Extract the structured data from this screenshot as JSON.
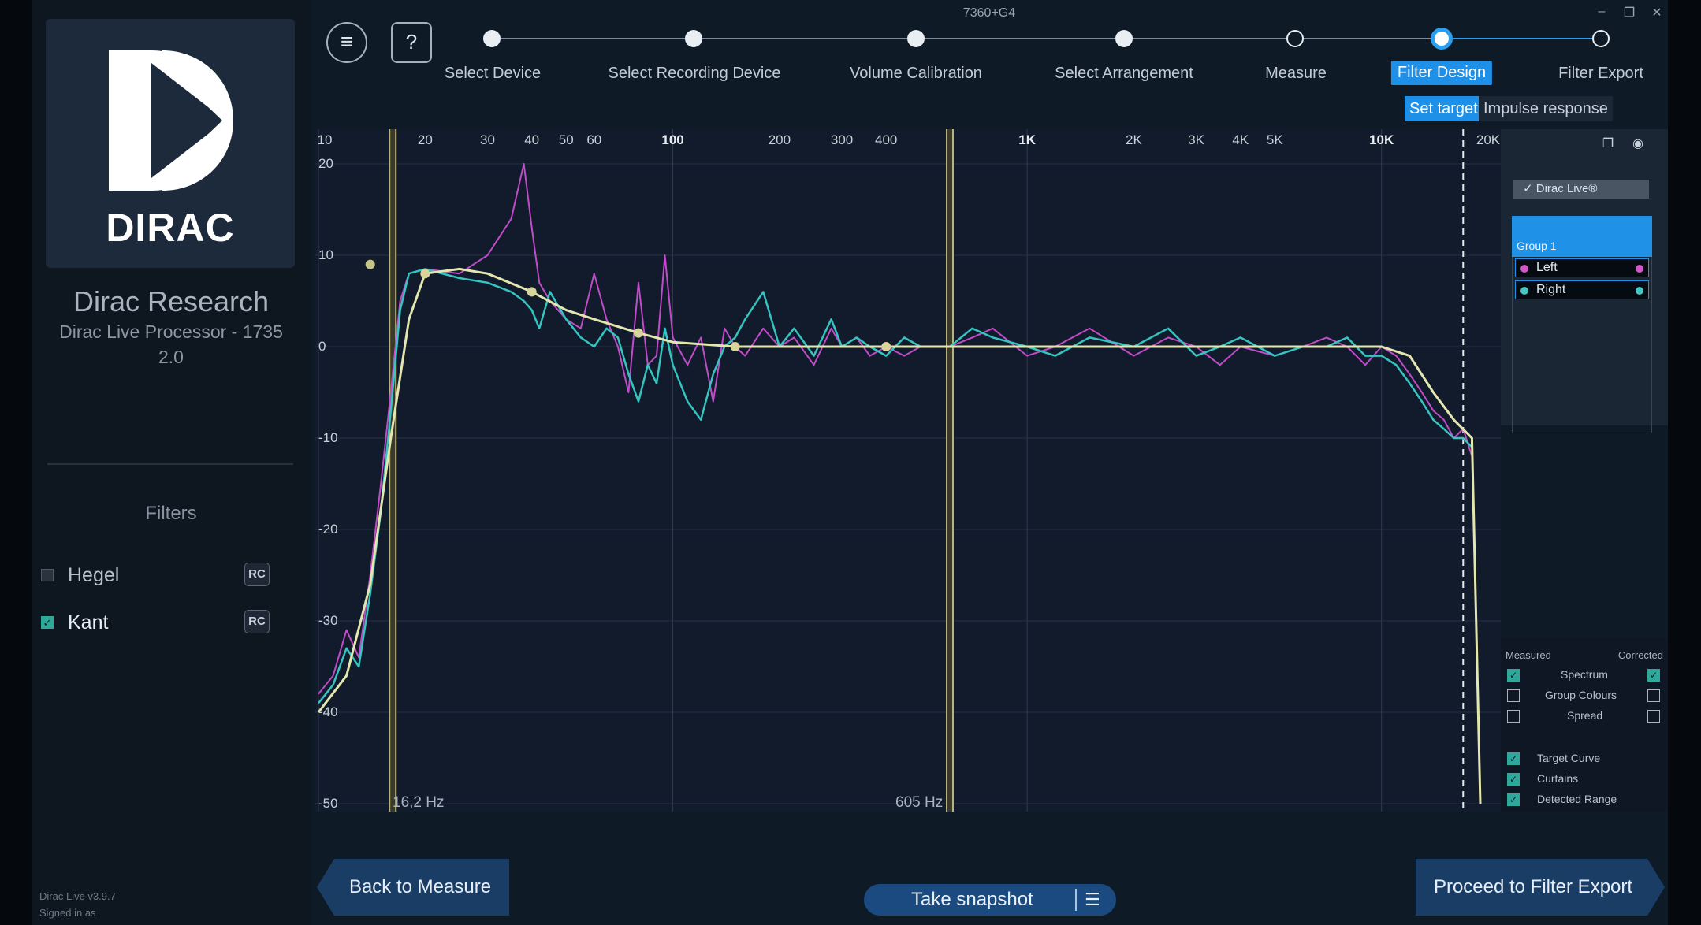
{
  "window": {
    "title": "7360+G4",
    "minimize": "–",
    "restore": "❐",
    "close": "✕"
  },
  "sidebar": {
    "logo_text": "DIRAC",
    "company": "Dirac Research",
    "device": "Dirac Live Processor - 1735",
    "device_version": "2.0",
    "filters_title": "Filters",
    "filters": [
      {
        "name": "Hegel",
        "checked": false,
        "badge": "RC"
      },
      {
        "name": "Kant",
        "checked": true,
        "badge": "RC"
      }
    ],
    "footer_version": "Dirac Live v3.9.7",
    "footer_signed": "Signed in as"
  },
  "toolbar": {
    "menu_icon": "≡",
    "help_icon": "?"
  },
  "steps": [
    {
      "label": "Select Device",
      "state": "done"
    },
    {
      "label": "Select Recording Device",
      "state": "done"
    },
    {
      "label": "Volume Calibration",
      "state": "done"
    },
    {
      "label": "Select Arrangement",
      "state": "done"
    },
    {
      "label": "Measure",
      "state": "todo"
    },
    {
      "label": "Filter Design",
      "state": "active"
    },
    {
      "label": "Filter Export",
      "state": "todo"
    }
  ],
  "subtabs": {
    "active": "Set target",
    "inactive": "Impulse response"
  },
  "graph": {
    "x_ticks": [
      "10",
      "20",
      "30",
      "40",
      "50",
      "60",
      "100",
      "200",
      "300",
      "400",
      "1K",
      "2K",
      "3K",
      "4K",
      "5K",
      "10K",
      "20K"
    ],
    "y_ticks": [
      "20",
      "10",
      "0",
      "-10",
      "-20",
      "-30",
      "-40",
      "-50"
    ],
    "low_curtain_label": "16,2 Hz",
    "high_curtain_label": "605 Hz",
    "colors": {
      "left": "#c04cc8",
      "right": "#35c4c0",
      "target": "#e4e6b0",
      "curtain": "#b9b27a",
      "grid": "#26324a"
    }
  },
  "chart_data": {
    "type": "line",
    "xlabel": "",
    "ylabel": "",
    "x_scale": "log",
    "xlim": [
      10,
      20000
    ],
    "ylim": [
      -50,
      20
    ],
    "x_tick_labels": [
      "10",
      "20",
      "30",
      "40",
      "50",
      "60",
      "100",
      "200",
      "300",
      "400",
      "1K",
      "2K",
      "3K",
      "4K",
      "5K",
      "10K",
      "20K"
    ],
    "y_tick_labels": [
      "20",
      "10",
      "0",
      "-10",
      "-20",
      "-30",
      "-40",
      "-50"
    ],
    "curtains": [
      16.2,
      605
    ],
    "series": [
      {
        "name": "Left",
        "x": [
          10,
          11,
          12,
          13,
          14,
          15,
          16,
          17,
          18,
          20,
          25,
          30,
          35,
          38,
          40,
          42,
          45,
          50,
          55,
          60,
          65,
          70,
          75,
          80,
          85,
          90,
          95,
          100,
          110,
          120,
          130,
          140,
          150,
          160,
          180,
          200,
          220,
          250,
          280,
          300,
          330,
          360,
          400,
          450,
          500,
          605,
          700,
          800,
          1000,
          1200,
          1500,
          2000,
          2500,
          3000,
          3500,
          4000,
          5000,
          6000,
          7000,
          8000,
          9000,
          10000,
          11000,
          12000,
          13000,
          14000,
          15000,
          16000,
          17000,
          18000
        ],
        "y": [
          -38,
          -36,
          -31,
          -34,
          -25,
          -15,
          -5,
          5,
          8,
          8.5,
          8,
          10,
          14,
          20,
          13,
          7,
          5,
          3,
          2,
          8,
          3,
          0,
          -5,
          7,
          -2,
          -1,
          10,
          1,
          -2,
          1,
          -6,
          2,
          0,
          -1,
          2,
          0,
          1,
          -2,
          2,
          0,
          1,
          -1,
          0,
          -1,
          0,
          0,
          1,
          2,
          -1,
          0,
          2,
          -1,
          1,
          0,
          -2,
          0,
          -1,
          0,
          1,
          0,
          -2,
          0,
          -1,
          -3,
          -5,
          -7,
          -8,
          -10,
          -9,
          -12
        ]
      },
      {
        "name": "Right",
        "x": [
          10,
          11,
          12,
          13,
          14,
          15,
          16,
          17,
          18,
          20,
          25,
          30,
          35,
          38,
          40,
          42,
          45,
          50,
          55,
          60,
          65,
          70,
          75,
          80,
          85,
          90,
          95,
          100,
          110,
          120,
          130,
          140,
          150,
          160,
          180,
          200,
          220,
          250,
          280,
          300,
          330,
          360,
          400,
          450,
          500,
          605,
          700,
          800,
          1000,
          1200,
          1500,
          2000,
          2500,
          3000,
          3500,
          4000,
          5000,
          6000,
          7000,
          8000,
          9000,
          10000,
          11000,
          12000,
          13000,
          14000,
          15000,
          16000,
          17000,
          18000
        ],
        "y": [
          -39,
          -37,
          -33,
          -35,
          -27,
          -18,
          -7,
          4,
          8,
          8.5,
          7.5,
          7,
          6,
          5,
          4,
          2,
          6,
          3,
          1,
          0,
          2,
          1,
          -3,
          -6,
          -2,
          -4,
          2,
          -2,
          -6,
          -8,
          -3,
          0,
          1,
          3,
          6,
          0,
          2,
          -1,
          3,
          0,
          1,
          0,
          -1,
          1,
          0,
          0,
          2,
          1,
          0,
          -1,
          1,
          0,
          2,
          -1,
          0,
          1,
          -1,
          0,
          0,
          1,
          -1,
          -1,
          -2,
          -4,
          -6,
          -8,
          -9,
          -10,
          -10,
          -11
        ]
      },
      {
        "name": "Target",
        "x": [
          10,
          12,
          14,
          16,
          18,
          20,
          25,
          30,
          40,
          50,
          60,
          80,
          100,
          150,
          200,
          300,
          400,
          605,
          1000,
          2000,
          5000,
          10000,
          12000,
          14000,
          16000,
          18000,
          19000
        ],
        "y": [
          -40,
          -36,
          -26,
          -10,
          3,
          8,
          8.5,
          8,
          6,
          4,
          3,
          1.5,
          0.5,
          0,
          0,
          0,
          0,
          0,
          0,
          0,
          0,
          0,
          -1,
          -5,
          -8,
          -10,
          -50
        ]
      }
    ]
  },
  "panel": {
    "preset": "Dirac Live®",
    "group": "Group 1",
    "channels": [
      {
        "name": "Left",
        "color": "#d655c9"
      },
      {
        "name": "Right",
        "color": "#45c6c0"
      }
    ]
  },
  "legend": {
    "measured": "Measured",
    "corrected": "Corrected",
    "rows": [
      {
        "label": "Spectrum",
        "measured": true,
        "corrected": true
      },
      {
        "label": "Group Colours",
        "measured": false,
        "corrected": false
      },
      {
        "label": "Spread",
        "measured": false,
        "corrected": false
      }
    ],
    "extra": [
      {
        "label": "Target Curve",
        "checked": true
      },
      {
        "label": "Curtains",
        "checked": true
      },
      {
        "label": "Detected Range",
        "checked": true
      }
    ]
  },
  "buttons": {
    "back": "Back to Measure",
    "snapshot": "Take snapshot",
    "snapshot_icon": "☰",
    "next": "Proceed to Filter Export"
  }
}
